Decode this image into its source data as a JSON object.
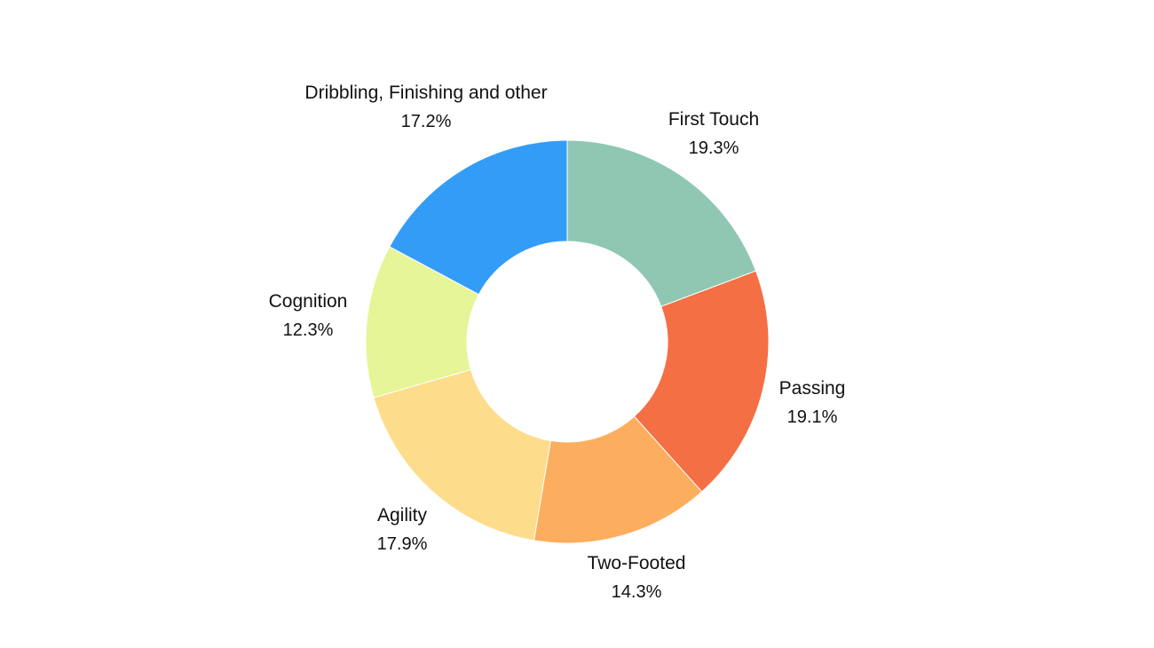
{
  "chart_data": {
    "type": "pie",
    "style": "donut",
    "title": "",
    "slices": [
      {
        "label": "First Touch",
        "percent_text": "19.3%",
        "value": 19.3,
        "color": "#8fc7b3"
      },
      {
        "label": "Passing",
        "percent_text": "19.1%",
        "value": 19.1,
        "color": "#f46f44"
      },
      {
        "label": "Two-Footed",
        "percent_text": "14.3%",
        "value": 14.3,
        "color": "#fdad5e"
      },
      {
        "label": "Agility",
        "percent_text": "17.9%",
        "value": 17.9,
        "color": "#fddd8b"
      },
      {
        "label": "Cognition",
        "percent_text": "12.3%",
        "value": 12.3,
        "color": "#e5f597"
      },
      {
        "label": "Dribbling, Finishing and other",
        "percent_text": "17.2%",
        "value": 17.2,
        "color": "#339cf7"
      }
    ]
  }
}
